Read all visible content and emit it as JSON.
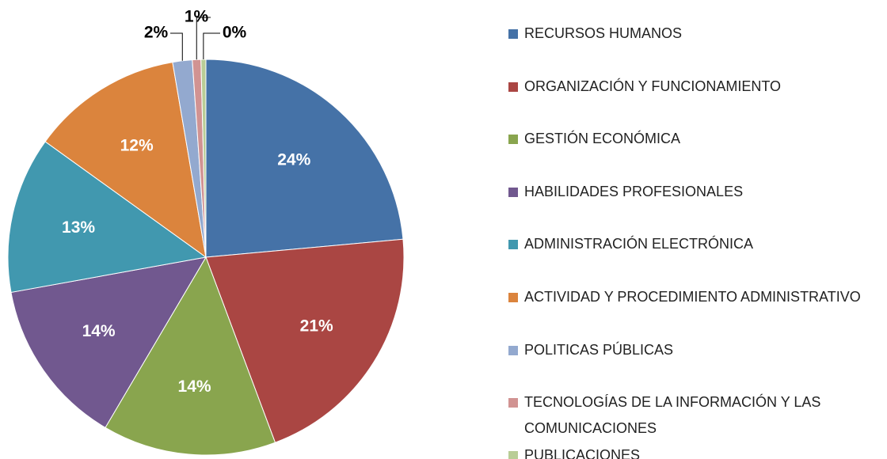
{
  "chart_data": {
    "type": "pie",
    "categories": [
      "RECURSOS HUMANOS",
      "ORGANIZACIÓN Y FUNCIONAMIENTO",
      "GESTIÓN ECONÓMICA",
      "HABILIDADES PROFESIONALES",
      "ADMINISTRACIÓN ELECTRÓNICA",
      "ACTIVIDAD Y PROCEDIMIENTO ADMINISTRATIVO",
      "POLITICAS PÚBLICAS",
      "TECNOLOGÍAS DE LA INFORMACIÓN Y LAS COMUNICACIONES",
      "PUBLICACIONES"
    ],
    "values": [
      23.6,
      20.8,
      14.2,
      13.7,
      12.8,
      12.4,
      1.6,
      0.7,
      0.4
    ],
    "value_labels": [
      "24%",
      "21%",
      "14%",
      "14%",
      "13%",
      "12%",
      "2%",
      "1%",
      "0%"
    ],
    "colors": [
      "#4572a7",
      "#aa4643",
      "#89a54e",
      "#71588f",
      "#4198af",
      "#db843d",
      "#93a9cf",
      "#d19392",
      "#b9cd96"
    ],
    "legend": "right"
  }
}
